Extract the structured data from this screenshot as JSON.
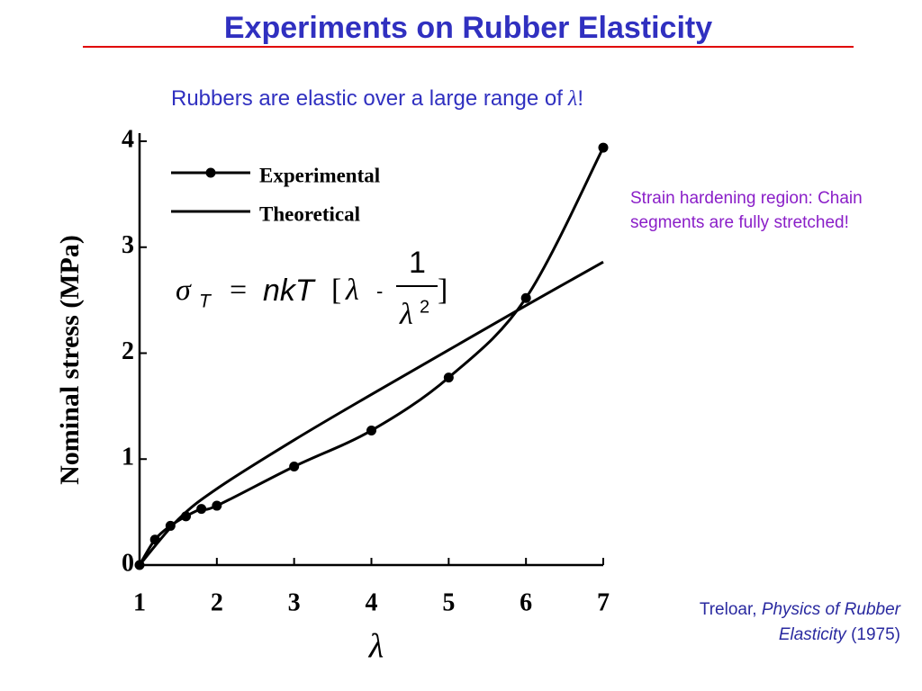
{
  "title": "Experiments on Rubber Elasticity",
  "subtitle": {
    "text": "Rubbers are elastic over a large range of",
    "symbol": "λ",
    "end": "!"
  },
  "annotation": "Strain hardening region: Chain segments are fully stretched!",
  "citation": {
    "author": "Treloar,",
    "book": "Physics of Rubber Elasticity",
    "year": "(1975)"
  },
  "formula": {
    "sigma": "σ",
    "sub": "T",
    "equals": "=",
    "body": "nkT",
    "open": "[",
    "lambda": "λ",
    "minus": "-",
    "num": "1",
    "den": "λ",
    "exp": "2",
    "close": "]"
  },
  "chart_data": {
    "type": "line",
    "x_label": "λ",
    "y_label": "Nominal stress (MPa)",
    "xlim": [
      1,
      7
    ],
    "xticks": [
      1,
      2,
      3,
      4,
      5,
      6,
      7
    ],
    "ylim": [
      0,
      4
    ],
    "yticks": [
      0,
      1,
      2,
      3,
      4
    ],
    "series": [
      {
        "name": "Experimental",
        "color": "#000000",
        "markers": true,
        "x": [
          1,
          1.2,
          1.4,
          1.6,
          1.8,
          2,
          3,
          4,
          5,
          6,
          7
        ],
        "values": [
          0,
          0.24,
          0.37,
          0.46,
          0.53,
          0.56,
          0.93,
          1.27,
          1.77,
          2.52,
          3.94
        ]
      },
      {
        "name": "Theoretical",
        "color": "#000000",
        "markers": false,
        "x": [
          1,
          1.5,
          2,
          3,
          4,
          5,
          6,
          7
        ],
        "values": [
          0,
          0.43,
          0.72,
          1.18,
          1.61,
          2.03,
          2.45,
          2.86
        ]
      }
    ]
  }
}
